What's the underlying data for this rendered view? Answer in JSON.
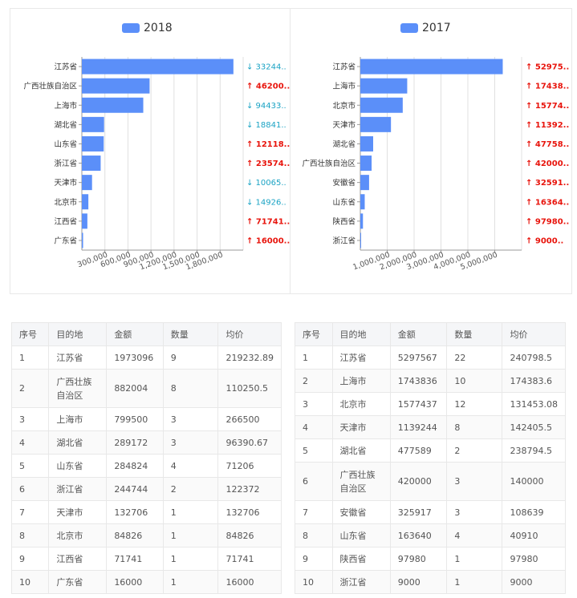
{
  "chart_data": [
    {
      "type": "bar",
      "orientation": "horizontal",
      "legend": "2018",
      "color": "#5b8ff9",
      "categories": [
        "江苏省",
        "广西壮族自治区",
        "上海市",
        "湖北省",
        "山东省",
        "浙江省",
        "天津市",
        "北京市",
        "江西省",
        "广东省"
      ],
      "values": [
        1973096,
        882004,
        799500,
        289172,
        284824,
        244744,
        132706,
        84826,
        71741,
        16000
      ],
      "xticks": [
        "300,000",
        "600,000",
        "900,000",
        "1,200,000",
        "1,500,000",
        "1,800,000"
      ],
      "xtick_values": [
        300000,
        600000,
        900000,
        1200000,
        1500000,
        1800000
      ],
      "xlim": [
        0,
        2100000
      ],
      "annotations": [
        {
          "arrow": "↓",
          "text": "33244..",
          "dir": "down"
        },
        {
          "arrow": "↑",
          "text": "46200..",
          "dir": "up"
        },
        {
          "arrow": "↓",
          "text": "94433..",
          "dir": "down"
        },
        {
          "arrow": "↓",
          "text": "18841..",
          "dir": "down"
        },
        {
          "arrow": "↑",
          "text": "12118..",
          "dir": "up"
        },
        {
          "arrow": "↑",
          "text": "23574..",
          "dir": "up"
        },
        {
          "arrow": "↓",
          "text": "10065..",
          "dir": "down"
        },
        {
          "arrow": "↓",
          "text": "14926..",
          "dir": "down"
        },
        {
          "arrow": "↑",
          "text": "71741..",
          "dir": "up"
        },
        {
          "arrow": "↑",
          "text": "16000..",
          "dir": "up"
        }
      ]
    },
    {
      "type": "bar",
      "orientation": "horizontal",
      "legend": "2017",
      "color": "#5b8ff9",
      "categories": [
        "江苏省",
        "上海市",
        "北京市",
        "天津市",
        "湖北省",
        "广西壮族自治区",
        "安徽省",
        "山东省",
        "陕西省",
        "浙江省"
      ],
      "values": [
        5297567,
        1743836,
        1577437,
        1139244,
        477589,
        420000,
        325917,
        163640,
        97980,
        9000
      ],
      "xticks": [
        "1,000,000",
        "2,000,000",
        "3,000,000",
        "4,000,000",
        "5,000,000"
      ],
      "xtick_values": [
        1000000,
        2000000,
        3000000,
        4000000,
        5000000
      ],
      "xlim": [
        0,
        6000000
      ],
      "annotations": [
        {
          "arrow": "↑",
          "text": "52975..",
          "dir": "up"
        },
        {
          "arrow": "↑",
          "text": "17438..",
          "dir": "up"
        },
        {
          "arrow": "↑",
          "text": "15774..",
          "dir": "up"
        },
        {
          "arrow": "↑",
          "text": "11392..",
          "dir": "up"
        },
        {
          "arrow": "↑",
          "text": "47758..",
          "dir": "up"
        },
        {
          "arrow": "↑",
          "text": "42000..",
          "dir": "up"
        },
        {
          "arrow": "↑",
          "text": "32591..",
          "dir": "up"
        },
        {
          "arrow": "↑",
          "text": "16364..",
          "dir": "up"
        },
        {
          "arrow": "↑",
          "text": "97980..",
          "dir": "up"
        },
        {
          "arrow": "↑",
          "text": "9000..",
          "dir": "up"
        }
      ]
    }
  ],
  "colors": {
    "bar": "#5b8ff9",
    "up": "#e8140c",
    "down": "#1aa3c4",
    "grid": "#e0e0e0"
  },
  "tables": {
    "headers": [
      "序号",
      "目的地",
      "金额",
      "数量",
      "均价"
    ],
    "left": [
      [
        "1",
        "江苏省",
        "1973096",
        "9",
        "219232.89"
      ],
      [
        "2",
        "广西壮族自治区",
        "882004",
        "8",
        "110250.5"
      ],
      [
        "3",
        "上海市",
        "799500",
        "3",
        "266500"
      ],
      [
        "4",
        "湖北省",
        "289172",
        "3",
        "96390.67"
      ],
      [
        "5",
        "山东省",
        "284824",
        "4",
        "71206"
      ],
      [
        "6",
        "浙江省",
        "244744",
        "2",
        "122372"
      ],
      [
        "7",
        "天津市",
        "132706",
        "1",
        "132706"
      ],
      [
        "8",
        "北京市",
        "84826",
        "1",
        "84826"
      ],
      [
        "9",
        "江西省",
        "71741",
        "1",
        "71741"
      ],
      [
        "10",
        "广东省",
        "16000",
        "1",
        "16000"
      ]
    ],
    "right": [
      [
        "1",
        "江苏省",
        "5297567",
        "22",
        "240798.5"
      ],
      [
        "2",
        "上海市",
        "1743836",
        "10",
        "174383.6"
      ],
      [
        "3",
        "北京市",
        "1577437",
        "12",
        "131453.08"
      ],
      [
        "4",
        "天津市",
        "1139244",
        "8",
        "142405.5"
      ],
      [
        "5",
        "湖北省",
        "477589",
        "2",
        "238794.5"
      ],
      [
        "6",
        "广西壮族自治区",
        "420000",
        "3",
        "140000"
      ],
      [
        "7",
        "安徽省",
        "325917",
        "3",
        "108639"
      ],
      [
        "8",
        "山东省",
        "163640",
        "4",
        "40910"
      ],
      [
        "9",
        "陕西省",
        "97980",
        "1",
        "97980"
      ],
      [
        "10",
        "浙江省",
        "9000",
        "1",
        "9000"
      ]
    ]
  }
}
